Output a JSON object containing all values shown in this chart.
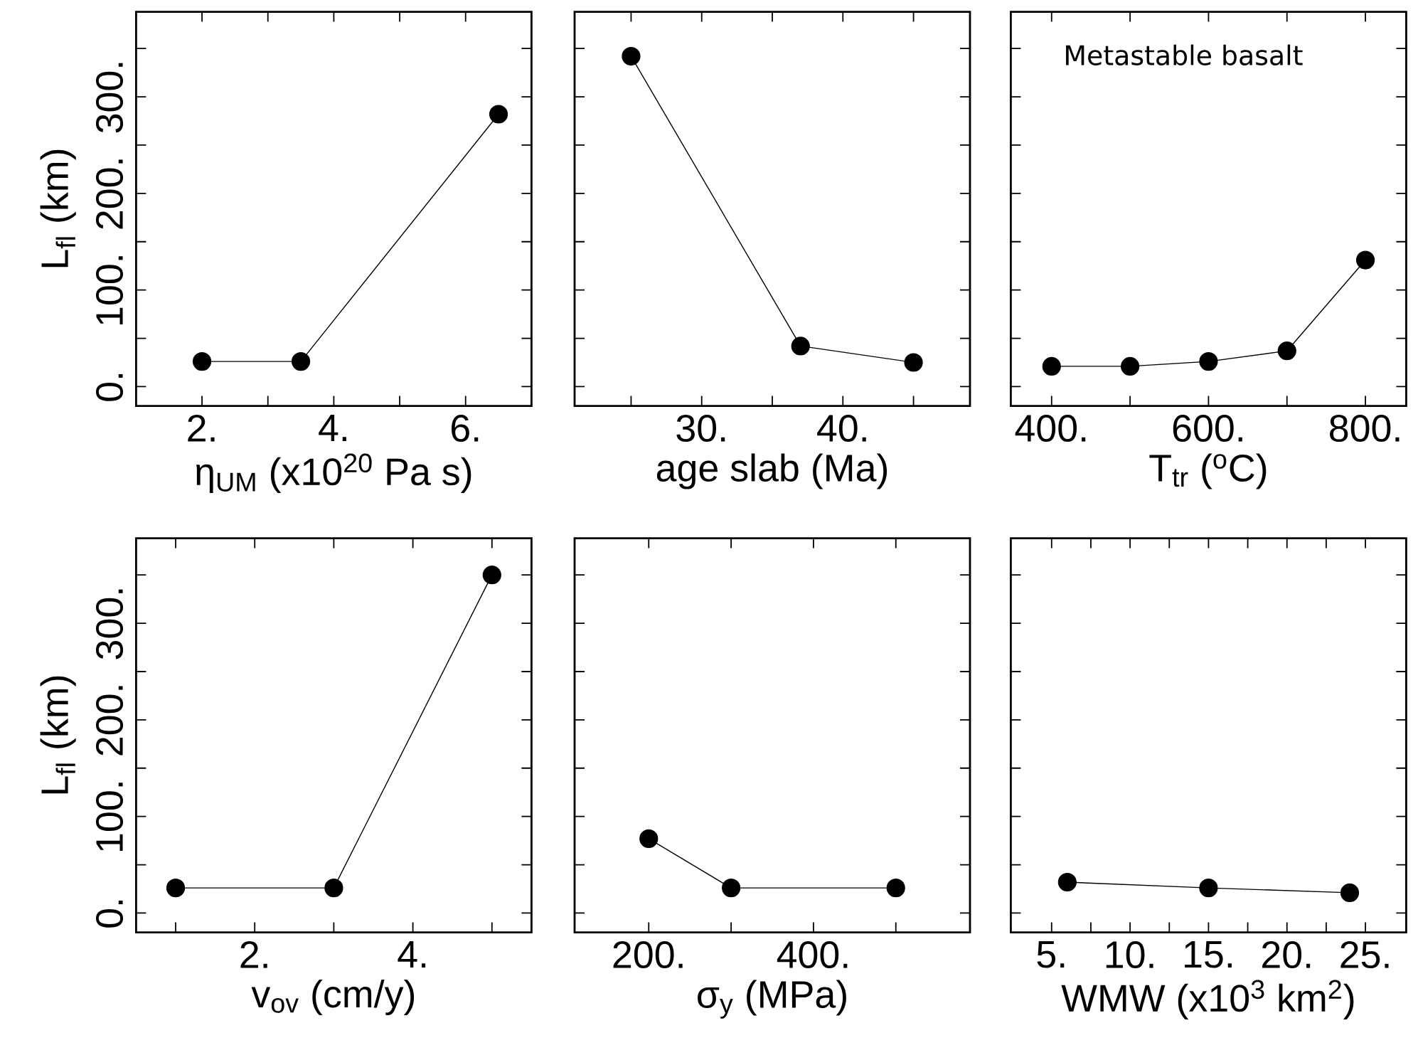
{
  "chart_data": [
    {
      "type": "line",
      "xlabel": "η$_{UM}$ (x10$^{20}$ Pa s)",
      "ylabel": "L$_{fl}$ (km)",
      "color": "#000000",
      "marker": "circle",
      "line_style": "solid",
      "x": [
        2,
        3.5,
        6.5
      ],
      "values": [
        26,
        26,
        282
      ],
      "xlim": [
        1,
        7
      ],
      "ylim": [
        -20,
        388
      ],
      "xticks": [
        {
          "value": 2,
          "label": "2."
        },
        {
          "value": 3,
          "label": null
        },
        {
          "value": 4,
          "label": "4."
        },
        {
          "value": 5,
          "label": null
        },
        {
          "value": 6,
          "label": "6."
        }
      ],
      "yticks": [
        {
          "value": 0,
          "label": "0."
        },
        {
          "value": 50,
          "label": null
        },
        {
          "value": 100,
          "label": "100."
        },
        {
          "value": 150,
          "label": null
        },
        {
          "value": 200,
          "label": "200."
        },
        {
          "value": 250,
          "label": null
        },
        {
          "value": 300,
          "label": "300."
        },
        {
          "value": 350,
          "label": null
        }
      ]
    },
    {
      "type": "line",
      "xlabel": "age slab (Ma)",
      "color": "#000000",
      "marker": "circle",
      "line_style": "solid",
      "tick_labels": "x",
      "x": [
        25,
        37,
        45
      ],
      "values": [
        342,
        42,
        25
      ],
      "xlim": [
        21,
        49
      ],
      "ylim": [
        -20,
        388
      ],
      "xticks": [
        {
          "value": 25,
          "label": null
        },
        {
          "value": 30,
          "label": "30."
        },
        {
          "value": 35,
          "label": null
        },
        {
          "value": 40,
          "label": "40."
        },
        {
          "value": 45,
          "label": null
        }
      ],
      "yticks": [
        {
          "value": 0,
          "label": null
        },
        {
          "value": 50,
          "label": null
        },
        {
          "value": 100,
          "label": null
        },
        {
          "value": 150,
          "label": null
        },
        {
          "value": 200,
          "label": null
        },
        {
          "value": 250,
          "label": null
        },
        {
          "value": 300,
          "label": null
        },
        {
          "value": 350,
          "label": null
        }
      ]
    },
    {
      "type": "line",
      "xlabel": "T$_{tr}$ ($^{o}$C)",
      "annotations": [
        "Metastable basalt"
      ],
      "color": "#000000",
      "marker": "circle",
      "line_style": "solid",
      "tick_labels": "x",
      "x": [
        400,
        500,
        600,
        700,
        800
      ],
      "values": [
        21,
        21,
        26,
        37,
        131
      ],
      "xlim": [
        348,
        852
      ],
      "ylim": [
        -20,
        388
      ],
      "xticks": [
        {
          "value": 400,
          "label": "400."
        },
        {
          "value": 500,
          "label": null
        },
        {
          "value": 600,
          "label": "600."
        },
        {
          "value": 700,
          "label": null
        },
        {
          "value": 800,
          "label": "800."
        }
      ],
      "yticks": [
        {
          "value": 0,
          "label": null
        },
        {
          "value": 50,
          "label": null
        },
        {
          "value": 100,
          "label": null
        },
        {
          "value": 150,
          "label": null
        },
        {
          "value": 200,
          "label": null
        },
        {
          "value": 250,
          "label": null
        },
        {
          "value": 300,
          "label": null
        },
        {
          "value": 350,
          "label": null
        }
      ]
    },
    {
      "type": "line",
      "xlabel": "v$_{ov}$ (cm/y)",
      "ylabel": "L$_{fl}$ (km)",
      "color": "#000000",
      "marker": "circle",
      "line_style": "solid",
      "x": [
        1,
        3,
        5
      ],
      "values": [
        26,
        26,
        350
      ],
      "xlim": [
        0.5,
        5.5
      ],
      "ylim": [
        -20,
        388
      ],
      "xticks": [
        {
          "value": 1,
          "label": null
        },
        {
          "value": 2,
          "label": "2."
        },
        {
          "value": 3,
          "label": null
        },
        {
          "value": 4,
          "label": "4."
        },
        {
          "value": 5,
          "label": null
        }
      ],
      "yticks": [
        {
          "value": 0,
          "label": "0."
        },
        {
          "value": 50,
          "label": null
        },
        {
          "value": 100,
          "label": "100."
        },
        {
          "value": 150,
          "label": null
        },
        {
          "value": 200,
          "label": "200."
        },
        {
          "value": 250,
          "label": null
        },
        {
          "value": 300,
          "label": "300."
        },
        {
          "value": 350,
          "label": null
        }
      ]
    },
    {
      "type": "line",
      "xlabel": "σ$_{y}$ (MPa)",
      "color": "#000000",
      "marker": "circle",
      "line_style": "solid",
      "tick_labels": "x",
      "x": [
        200,
        300,
        500
      ],
      "values": [
        77,
        26,
        26
      ],
      "xlim": [
        110,
        590
      ],
      "ylim": [
        -20,
        388
      ],
      "xticks": [
        {
          "value": 200,
          "label": "200."
        },
        {
          "value": 300,
          "label": null
        },
        {
          "value": 400,
          "label": "400."
        },
        {
          "value": 500,
          "label": null
        }
      ],
      "yticks": [
        {
          "value": 0,
          "label": null
        },
        {
          "value": 50,
          "label": null
        },
        {
          "value": 100,
          "label": null
        },
        {
          "value": 150,
          "label": null
        },
        {
          "value": 200,
          "label": null
        },
        {
          "value": 250,
          "label": null
        },
        {
          "value": 300,
          "label": null
        },
        {
          "value": 350,
          "label": null
        }
      ]
    },
    {
      "type": "line",
      "xlabel": "WMW (x10$^{3}$ km$^{2}$)",
      "color": "#000000",
      "marker": "circle",
      "line_style": "solid",
      "tick_labels": "x",
      "x": [
        6,
        15,
        24
      ],
      "values": [
        32,
        26,
        21
      ],
      "xlim": [
        2.4,
        27.6
      ],
      "ylim": [
        -20,
        388
      ],
      "xticks": [
        {
          "value": 5,
          "label": "5."
        },
        {
          "value": 7.5,
          "label": null
        },
        {
          "value": 10,
          "label": "10."
        },
        {
          "value": 12.5,
          "label": null
        },
        {
          "value": 15,
          "label": "15."
        },
        {
          "value": 17.5,
          "label": null
        },
        {
          "value": 20,
          "label": "20."
        },
        {
          "value": 22.5,
          "label": null
        },
        {
          "value": 25,
          "label": "25."
        }
      ],
      "yticks": [
        {
          "value": 0,
          "label": null
        },
        {
          "value": 50,
          "label": null
        },
        {
          "value": 100,
          "label": null
        },
        {
          "value": 150,
          "label": null
        },
        {
          "value": 200,
          "label": null
        },
        {
          "value": 250,
          "label": null
        },
        {
          "value": 300,
          "label": null
        },
        {
          "value": 350,
          "label": null
        }
      ]
    }
  ]
}
